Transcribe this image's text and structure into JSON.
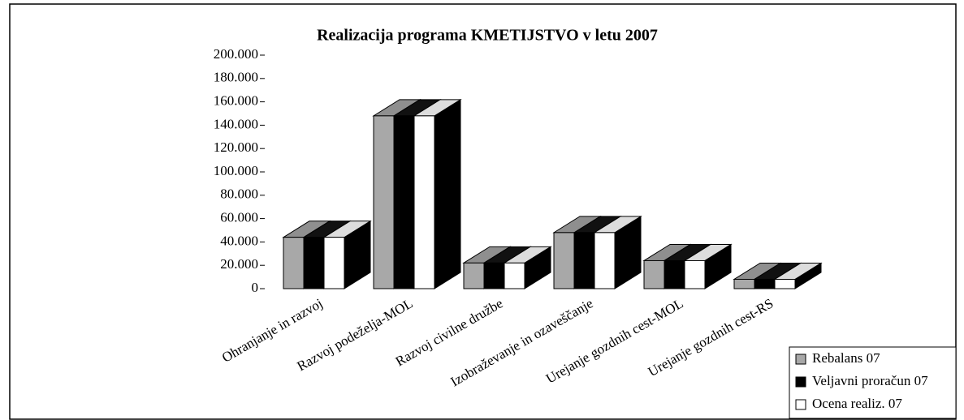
{
  "chart_data": {
    "type": "bar3d",
    "title": "Realizacija programa KMETIJSTVO v letu 2007",
    "categories": [
      "Ohranjanje in razvoj",
      "Razvoj podeželja-MOL",
      "Razvoj civilne družbe",
      "Izobraževanje in ozaveščanje",
      "Urejanje gozdnih cest-MOL",
      "Urejanje gozdnih cest-RS"
    ],
    "series": [
      {
        "name": "Rebalans 07",
        "color": "#a8a8a8",
        "values": [
          44000,
          148000,
          22000,
          48000,
          24000,
          8000
        ]
      },
      {
        "name": "Veljavni proračun 07",
        "color": "#000000",
        "values": [
          44000,
          148000,
          22000,
          48000,
          24000,
          8000
        ]
      },
      {
        "name": "Ocena realiz. 07",
        "color": "#ffffff",
        "values": [
          44000,
          148000,
          22000,
          48000,
          24000,
          8000
        ]
      }
    ],
    "ylim": [
      0,
      200000
    ],
    "yticks": [
      0,
      {
        "value": 20000,
        "label": "20.000"
      },
      {
        "value": 40000,
        "label": "40.000"
      },
      {
        "value": 60000,
        "label": "60.000"
      },
      {
        "value": 80000,
        "label": "80.000"
      },
      {
        "value": 100000,
        "label": "100.000"
      },
      {
        "value": 120000,
        "label": "120.000"
      },
      {
        "value": 140000,
        "label": "140.000"
      },
      {
        "value": 160000,
        "label": "160.000"
      },
      {
        "value": 180000,
        "label": "180.000"
      },
      {
        "value": 200000,
        "label": "200.000"
      }
    ],
    "grid": false,
    "legend": "bottom-right"
  }
}
